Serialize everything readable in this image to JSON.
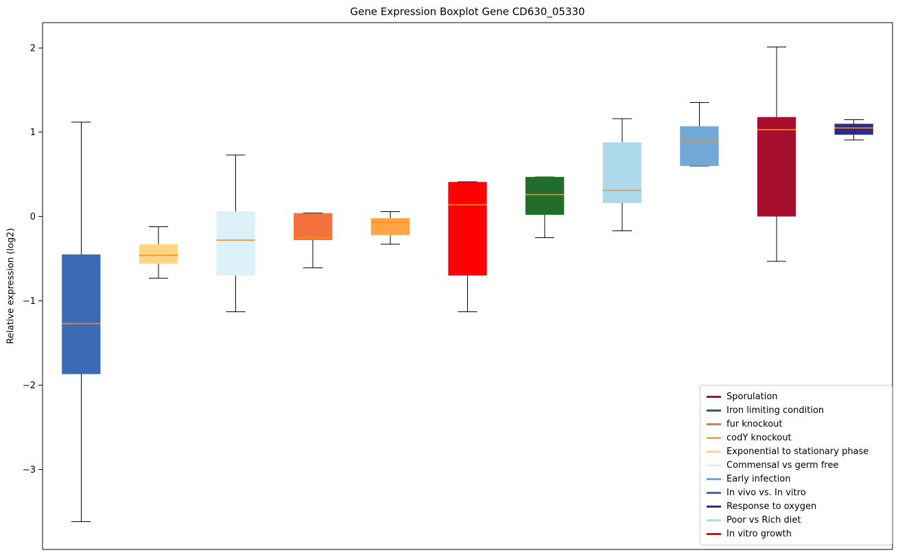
{
  "chart_data": {
    "type": "boxplot",
    "title": "Gene Expression Boxplot Gene CD630_05330",
    "xlabel": "",
    "ylabel": "Relative expression (log2)",
    "ylim": [
      -3.95,
      2.3
    ],
    "xlim": [
      0.5,
      11.5
    ],
    "yticks": [
      2,
      1,
      0,
      -1,
      -2,
      -3
    ],
    "grid": false,
    "legend_position": "lower right",
    "median_color": "#ff8c1f",
    "whisker_color": "#000000",
    "boxes": [
      {
        "position": 1,
        "label": "In vivo vs. In vitro",
        "color": "#3b6bb2",
        "whisker_low": -3.62,
        "q1": -1.87,
        "median": -1.27,
        "q3": -0.45,
        "whisker_high": 1.12
      },
      {
        "position": 2,
        "label": "Exponential to stationary phase",
        "color": "#ffd584",
        "whisker_low": -0.73,
        "q1": -0.56,
        "median": -0.46,
        "q3": -0.33,
        "whisker_high": -0.12
      },
      {
        "position": 3,
        "label": "Commensal vs germ free",
        "color": "#ddf1f8",
        "whisker_low": -1.13,
        "q1": -0.7,
        "median": -0.28,
        "q3": 0.06,
        "whisker_high": 0.73
      },
      {
        "position": 4,
        "label": "fur knockout",
        "color": "#f2713c",
        "whisker_low": -0.61,
        "q1": -0.28,
        "median": -0.25,
        "q3": 0.04,
        "whisker_high": 0.04
      },
      {
        "position": 5,
        "label": "codY knockout",
        "color": "#ffa546",
        "whisker_low": -0.33,
        "q1": -0.22,
        "median": -0.07,
        "q3": -0.02,
        "whisker_high": 0.06
      },
      {
        "position": 6,
        "label": "In vitro growth",
        "color": "#ff0000",
        "whisker_low": -1.13,
        "q1": -0.7,
        "median": 0.14,
        "q3": 0.41,
        "whisker_high": 0.41
      },
      {
        "position": 7,
        "label": "Iron limiting condition",
        "color": "#226d2c",
        "whisker_low": -0.25,
        "q1": 0.02,
        "median": 0.26,
        "q3": 0.47,
        "whisker_high": 0.47
      },
      {
        "position": 8,
        "label": "Poor vs Rich diet",
        "color": "#aed9ea",
        "whisker_low": -0.17,
        "q1": 0.16,
        "median": 0.31,
        "q3": 0.88,
        "whisker_high": 1.16
      },
      {
        "position": 9,
        "label": "Early infection",
        "color": "#72a8d5",
        "whisker_low": 0.6,
        "q1": 0.6,
        "median": 0.9,
        "q3": 1.07,
        "whisker_high": 1.35
      },
      {
        "position": 10,
        "label": "Sporulation",
        "color": "#a60e2e",
        "whisker_low": -0.53,
        "q1": 0.0,
        "median": 1.03,
        "q3": 1.18,
        "whisker_high": 2.01
      },
      {
        "position": 11,
        "label": "Response to oxygen",
        "color": "#2a2a8f",
        "whisker_low": 0.91,
        "q1": 0.97,
        "median": 1.05,
        "q3": 1.1,
        "whisker_high": 1.15
      }
    ],
    "legend": [
      {
        "label": "Sporulation",
        "color": "#a60e2e"
      },
      {
        "label": "Iron limiting condition",
        "color": "#226d2c"
      },
      {
        "label": "fur knockout",
        "color": "#f2713c"
      },
      {
        "label": "codY knockout",
        "color": "#ffa546"
      },
      {
        "label": "Exponential to stationary phase",
        "color": "#ffd584"
      },
      {
        "label": "Commensal vs germ free",
        "color": "#ddf1f8"
      },
      {
        "label": "Early infection",
        "color": "#72a8d5"
      },
      {
        "label": "In vivo vs. In vitro",
        "color": "#3b6bb2"
      },
      {
        "label": "Response to oxygen",
        "color": "#2a2a8f"
      },
      {
        "label": "Poor vs Rich diet",
        "color": "#aed9ea"
      },
      {
        "label": "In vitro growth",
        "color": "#ff0000"
      }
    ]
  }
}
